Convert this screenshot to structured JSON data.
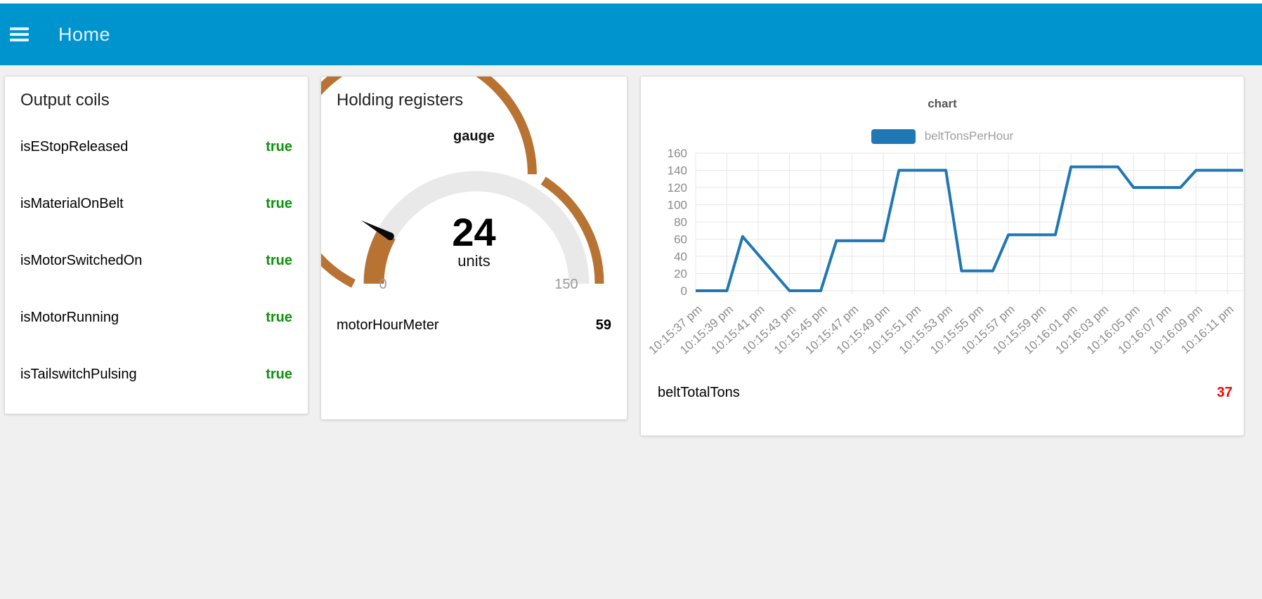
{
  "header": {
    "title": "Home",
    "bg_color": "#0094ce"
  },
  "page": {
    "bg_color": "#f0f0f0"
  },
  "cards": {
    "output_coils": {
      "title": "Output coils",
      "true_color": "#0d930d",
      "rows": [
        {
          "label": "isEStopReleased",
          "value": "true"
        },
        {
          "label": "isMaterialOnBelt",
          "value": "true"
        },
        {
          "label": "isMotorSwitchedOn",
          "value": "true"
        },
        {
          "label": "isMotorRunning",
          "value": "true"
        },
        {
          "label": "isTailswitchPulsing",
          "value": "true"
        }
      ]
    },
    "holding_registers": {
      "title": "Holding registers",
      "gauge": {
        "title": "gauge",
        "value": 24,
        "value_text": "24",
        "units": "units",
        "min": 0,
        "max": 150,
        "min_label": "0",
        "max_label": "150",
        "marker_value": 100,
        "arc_color": "#b87333",
        "track_color": "#e9e9e9",
        "needle_color": "#0a0a0a",
        "tick_label_color": "#9a9a9a"
      },
      "rows": [
        {
          "label": "motorHourMeter",
          "value": "59"
        }
      ]
    },
    "chart_card": {
      "footer_row": {
        "label": "beltTotalTons",
        "value": "37",
        "value_color": "#ff0000"
      }
    }
  },
  "chart_data": {
    "type": "line",
    "title": "chart",
    "legend": [
      {
        "name": "beltTonsPerHour",
        "color": "#1f77b4"
      }
    ],
    "legend_position": "top",
    "grid": {
      "show": true,
      "color": "#e7e7e7"
    },
    "x_domain": [
      37,
      72
    ],
    "x_axis": {
      "label_color": "#8a8a8a",
      "rotation_deg": -42,
      "tick_seconds": [
        37,
        39,
        41,
        43,
        45,
        47,
        49,
        51,
        53,
        55,
        57,
        59,
        61,
        63,
        65,
        67,
        69,
        71
      ],
      "tick_labels": [
        "10:15:37 pm",
        "10:15:39 pm",
        "10:15:41 pm",
        "10:15:43 pm",
        "10:15:45 pm",
        "10:15:47 pm",
        "10:15:49 pm",
        "10:15:51 pm",
        "10:15:53 pm",
        "10:15:55 pm",
        "10:15:57 pm",
        "10:15:59 pm",
        "10:16:01 pm",
        "10:16:03 pm",
        "10:16:05 pm",
        "10:16:07 pm",
        "10:16:09 pm",
        "10:16:11 pm"
      ]
    },
    "y_axis": {
      "min": 0,
      "max": 160,
      "ticks": [
        0,
        20,
        40,
        60,
        80,
        100,
        120,
        140,
        160
      ],
      "label_color": "#8a8a8a"
    },
    "series": [
      {
        "name": "beltTonsPerHour",
        "color": "#1f77b4",
        "x_seconds_after_10_15_00": [
          37,
          38,
          39,
          40,
          41,
          42,
          43,
          44,
          45,
          46,
          47,
          48,
          49,
          50,
          51,
          52,
          53,
          54,
          55,
          56,
          57,
          58,
          59,
          60,
          61,
          62,
          63,
          64,
          65,
          66,
          67,
          68,
          69,
          70,
          71,
          72
        ],
        "values": [
          0,
          0,
          0,
          63,
          42,
          21,
          0,
          0,
          0,
          58,
          58,
          58,
          58,
          140,
          140,
          140,
          140,
          23,
          23,
          23,
          65,
          65,
          65,
          65,
          144,
          144,
          144,
          144,
          120,
          120,
          120,
          120,
          140,
          140,
          140,
          140
        ]
      }
    ]
  }
}
